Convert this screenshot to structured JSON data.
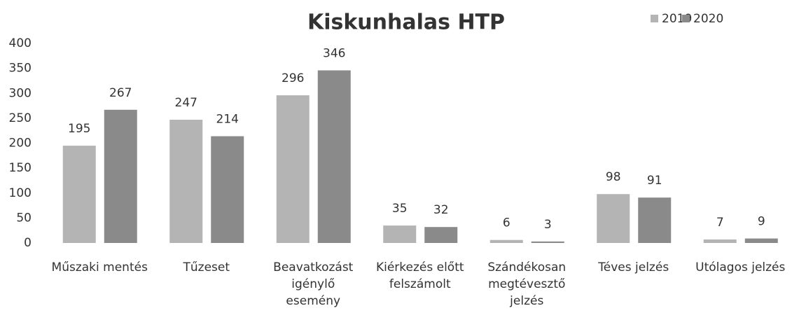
{
  "chart_data": {
    "type": "bar",
    "title": "Kiskunhalas HTP",
    "categories": [
      "Műszaki mentés",
      "Tűzeset",
      "Beavatkozást igénylő esemény",
      "Kiérkezés előtt felszámolt",
      "Szándékosan megtévesztő jelzés",
      "Téves jelzés",
      "Utólagos jelzés"
    ],
    "series": [
      {
        "name": "2019",
        "color": "#b4b4b4",
        "values": [
          195,
          247,
          296,
          35,
          6,
          98,
          7
        ]
      },
      {
        "name": "2020",
        "color": "#8a8a8a",
        "values": [
          267,
          214,
          346,
          32,
          3,
          91,
          9
        ]
      }
    ],
    "ylim": [
      0,
      400
    ],
    "yticks": [
      0,
      50,
      100,
      150,
      200,
      250,
      300,
      350,
      400
    ],
    "grid": false,
    "legend": "top-right"
  }
}
